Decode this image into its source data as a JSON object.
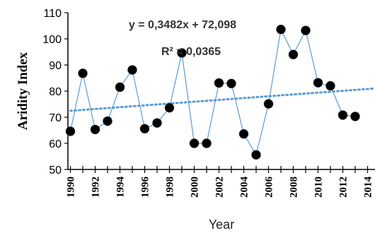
{
  "chart_data": {
    "type": "line",
    "title": "",
    "xlabel": "Year",
    "ylabel": "Aridity Index",
    "xlim": [
      1989.8,
      2014.6
    ],
    "ylim": [
      50,
      110
    ],
    "y_ticks": [
      50,
      60,
      70,
      80,
      90,
      100,
      110
    ],
    "x_ticks": [
      1990,
      1992,
      1994,
      1996,
      1998,
      2000,
      2002,
      2004,
      2006,
      2008,
      2010,
      2012,
      2014
    ],
    "x_tick_labels": [
      "1990",
      "1992",
      "1994",
      "1996",
      "1998",
      "2000",
      "2002",
      "2004",
      "2006",
      "2008",
      "2010",
      "2012",
      "2014"
    ],
    "grid": false,
    "series": [
      {
        "x": [
          1990,
          1991,
          1992,
          1993,
          1994,
          1995,
          1996,
          1997,
          1998,
          1999,
          2000,
          2001,
          2002,
          2003,
          2004,
          2005,
          2006,
          2007,
          2008,
          2009,
          2010,
          2011,
          2012,
          2013
        ],
        "values": [
          64.6,
          86.8,
          65.3,
          68.5,
          81.5,
          88.1,
          65.6,
          67.8,
          73.6,
          94.6,
          60.0,
          60.0,
          83.1,
          82.9,
          63.6,
          55.6,
          75.1,
          103.6,
          94.0,
          103.2,
          83.2,
          82.0,
          70.8,
          70.3
        ],
        "color": "#5b9bd5",
        "marker_color": "#000000"
      }
    ],
    "trendline": {
      "slope": 0.3482,
      "intercept": 72.098,
      "x0": 1990,
      "color": "#5b9bd5",
      "style": "dotted"
    },
    "annotations": {
      "equation": "y = 0,3482x + 72,098",
      "r_squared": "R² = 0,0365"
    }
  }
}
